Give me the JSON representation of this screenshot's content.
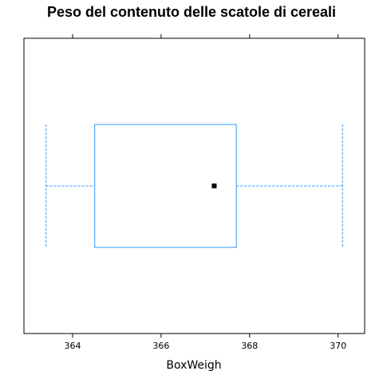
{
  "chart_data": {
    "type": "boxplot",
    "title": "Peso del contenuto delle scatole di cereali",
    "xlabel": "BoxWeigh",
    "ylabel": "",
    "xlim": [
      362.9,
      370.6
    ],
    "x_ticks": [
      364,
      366,
      368,
      370
    ],
    "x_tick_labels": [
      "364",
      "366",
      "368",
      "370"
    ],
    "box": {
      "min": 363.4,
      "q1": 364.5,
      "median": 367.2,
      "q3": 367.7,
      "max": 370.1
    },
    "orientation": "horizontal",
    "grid": false,
    "box_color": "#3399ff",
    "whisker_color": "#3399ff",
    "median_marker_color": "#000000"
  }
}
